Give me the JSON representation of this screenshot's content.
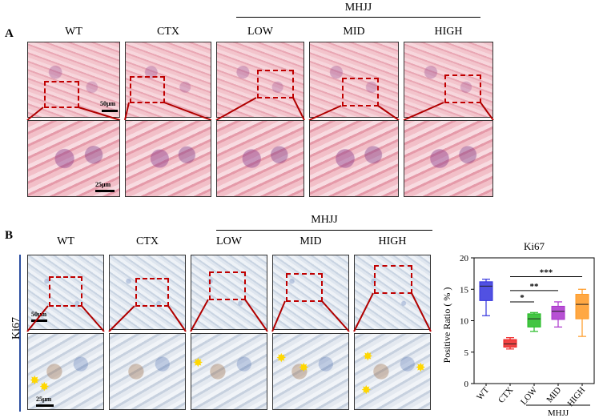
{
  "panelA": {
    "letter": "A",
    "group_label": "MHJJ",
    "columns": [
      "WT",
      "CTX",
      "LOW",
      "MID",
      "HIGH"
    ],
    "scale_top": "50μm",
    "scale_bottom": "25μm"
  },
  "panelB": {
    "letter": "B",
    "group_label": "MHJJ",
    "columns": [
      "WT",
      "CTX",
      "LOW",
      "MID",
      "HIGH"
    ],
    "row_label": "Ki67",
    "scale_top": "50μm",
    "scale_bottom": "25μm"
  },
  "chart_data": {
    "type": "box",
    "title": "Ki67",
    "xlabel": "",
    "ylabel": "Positive Ratio ( % )",
    "ylim": [
      0,
      20
    ],
    "yticks": [
      0,
      5,
      10,
      15,
      20
    ],
    "categories": [
      "WT",
      "CTX",
      "LOW",
      "MID",
      "HIGH"
    ],
    "group_label": "MHJJ",
    "group_members": [
      "LOW",
      "MID",
      "HIGH"
    ],
    "colors": [
      "#3333dd",
      "#ee2222",
      "#22bb22",
      "#aa33cc",
      "#ff9922"
    ],
    "boxes": [
      {
        "min": 10.8,
        "q1": 13.2,
        "median": 15.5,
        "q3": 16.2,
        "max": 16.6
      },
      {
        "min": 5.5,
        "q1": 5.8,
        "median": 6.3,
        "q3": 7.0,
        "max": 7.3
      },
      {
        "min": 8.3,
        "q1": 9.0,
        "median": 10.3,
        "q3": 11.1,
        "max": 11.3
      },
      {
        "min": 9.0,
        "q1": 10.2,
        "median": 11.5,
        "q3": 12.3,
        "max": 13.0
      },
      {
        "min": 7.5,
        "q1": 10.3,
        "median": 12.6,
        "q3": 14.2,
        "max": 15.0
      }
    ],
    "significance": [
      {
        "from": "CTX",
        "to": "LOW",
        "label": "*"
      },
      {
        "from": "CTX",
        "to": "MID",
        "label": "**"
      },
      {
        "from": "CTX",
        "to": "HIGH",
        "label": "***"
      }
    ]
  }
}
